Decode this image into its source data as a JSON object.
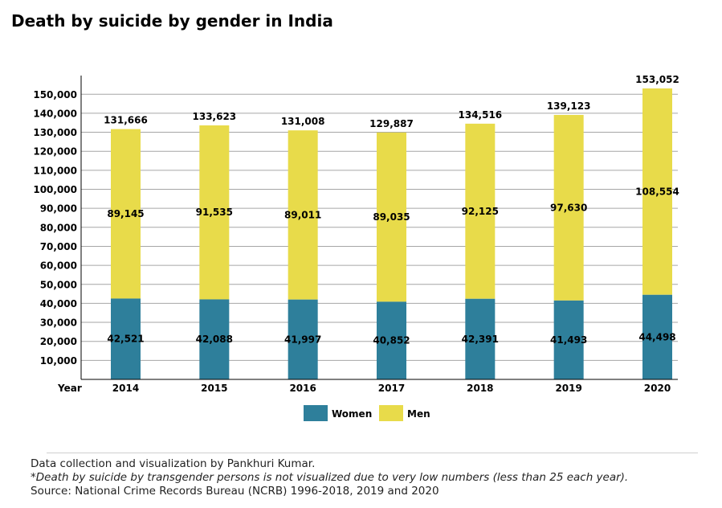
{
  "title": "Death by suicide by gender in India",
  "chart_data": {
    "type": "bar",
    "stacked": true,
    "xlabel": "Year",
    "categories": [
      "2014",
      "2015",
      "2016",
      "2017",
      "2018",
      "2019",
      "2020"
    ],
    "series": [
      {
        "name": "Women",
        "color": "#2e7f9b",
        "values": [
          42521,
          42088,
          41997,
          40852,
          42391,
          41493,
          44498
        ],
        "labels": [
          "42,521",
          "42,088",
          "41,997",
          "40,852",
          "42,391",
          "41,493",
          "44,498"
        ]
      },
      {
        "name": "Men",
        "color": "#e8db4a",
        "values": [
          89145,
          91535,
          89011,
          89035,
          92125,
          97630,
          108554
        ],
        "labels": [
          "89,145",
          "91,535",
          "89,011",
          "89,035",
          "92,125",
          "97,630",
          "108,554"
        ]
      }
    ],
    "totals": [
      131666,
      133623,
      131008,
      129887,
      134516,
      139123,
      153052
    ],
    "total_labels": [
      "131,666",
      "133,623",
      "131,008",
      "129,887",
      "134,516",
      "139,123",
      "153,052"
    ],
    "yticks": [
      10000,
      20000,
      30000,
      40000,
      50000,
      60000,
      70000,
      80000,
      90000,
      100000,
      110000,
      120000,
      130000,
      140000,
      150000
    ],
    "ytick_labels": [
      "10,000",
      "20,000",
      "30,000",
      "40,000",
      "50,000",
      "60,000",
      "70,000",
      "80,000",
      "90,000",
      "100,000",
      "110,000",
      "120,000",
      "130,000",
      "140,000",
      "150,000"
    ],
    "ylim": [
      0,
      160000
    ],
    "grid": true,
    "legend_position": "bottom-center"
  },
  "footer": {
    "credit": "Data collection and visualization by Pankhuri Kumar.",
    "note": "*Death by suicide by transgender persons is not visualized due to very low numbers (less than 25 each year).",
    "source": "Source: National Crime Records Bureau (NCRB) 1996-2018, 2019 and 2020"
  }
}
